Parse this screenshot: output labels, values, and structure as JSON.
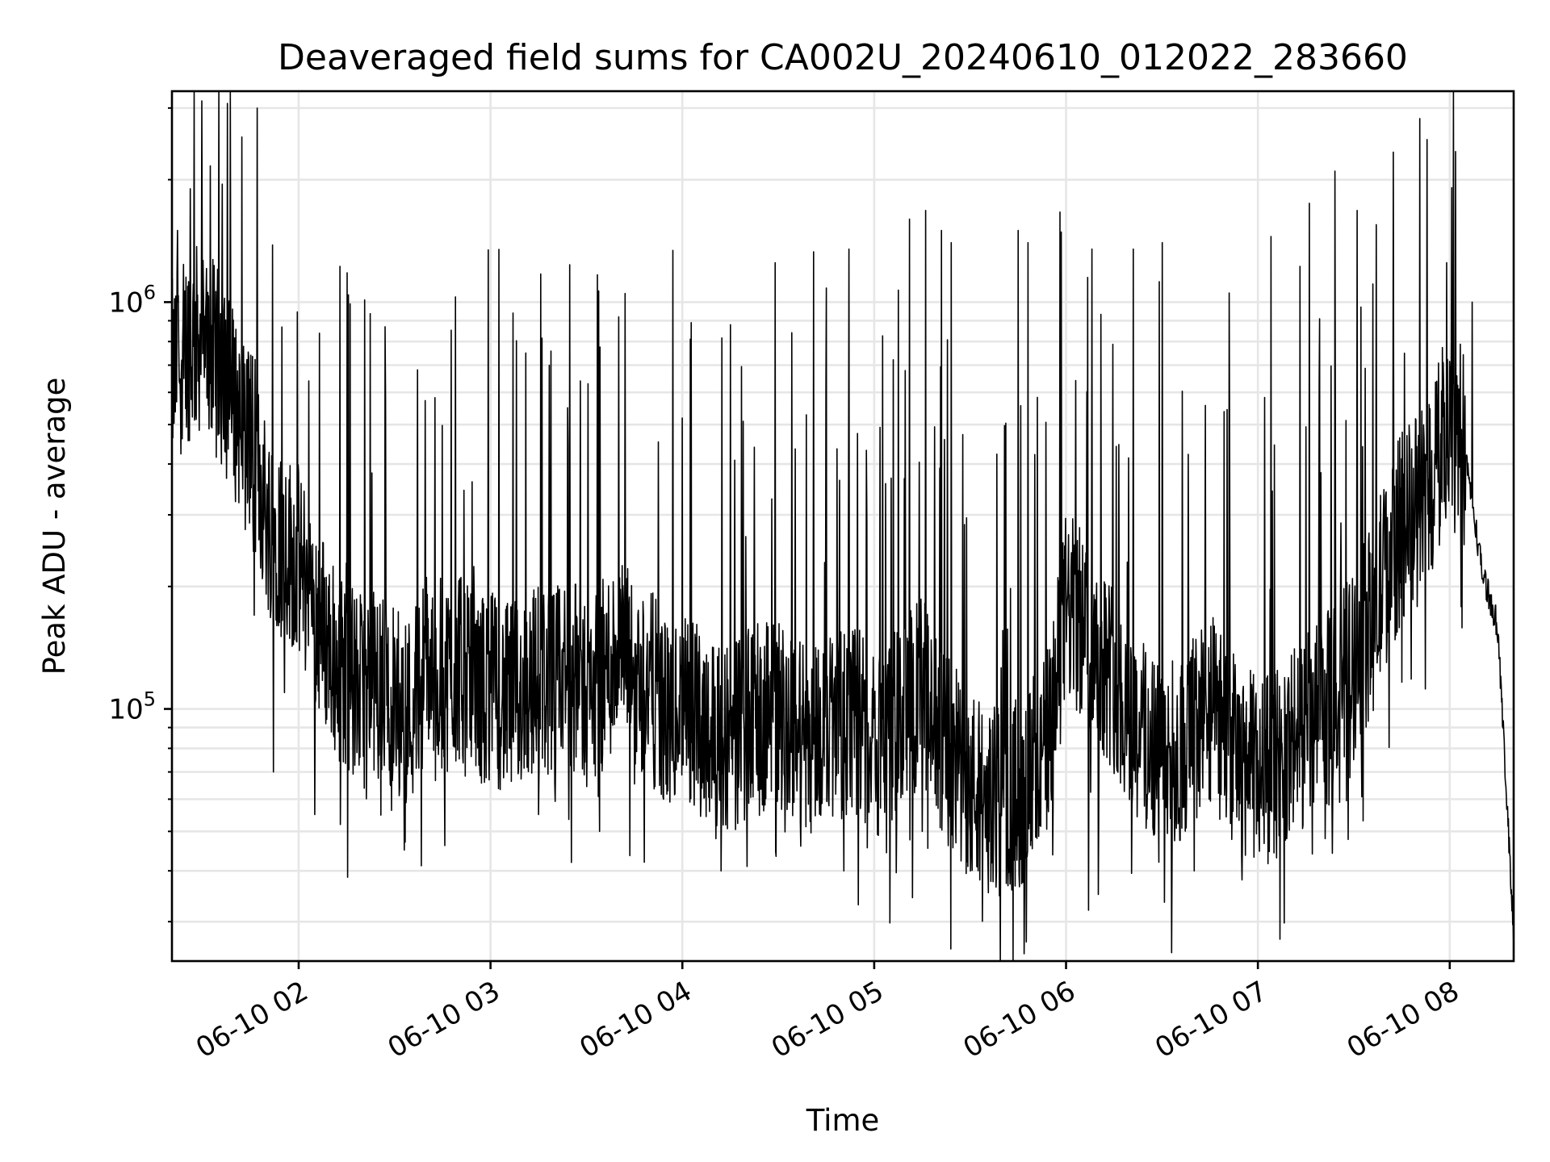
{
  "chart_data": {
    "type": "line",
    "title": "Deaveraged field sums for CA002U_20240610_012022_283660",
    "xlabel": "Time",
    "ylabel": "Peak ADU - average",
    "yscale": "log",
    "grid": true,
    "line_color": "#000000",
    "x_range": [
      "2024-06-10 01:20:22",
      "2024-06-10 08:20:00"
    ],
    "ylim": [
      24000,
      3300000
    ],
    "x_ticks": [
      {
        "value": "2024-06-10 02:00",
        "label": "06-10 02"
      },
      {
        "value": "2024-06-10 03:00",
        "label": "06-10 03"
      },
      {
        "value": "2024-06-10 04:00",
        "label": "06-10 04"
      },
      {
        "value": "2024-06-10 05:00",
        "label": "06-10 05"
      },
      {
        "value": "2024-06-10 06:00",
        "label": "06-10 06"
      },
      {
        "value": "2024-06-10 07:00",
        "label": "06-10 07"
      },
      {
        "value": "2024-06-10 08:00",
        "label": "06-10 08"
      }
    ],
    "y_ticks": [
      {
        "value": 100000,
        "base": "10",
        "exp": "5"
      },
      {
        "value": 1000000,
        "base": "10",
        "exp": "6"
      }
    ],
    "series": [
      {
        "x": [
          "2024-06-10 01:20",
          "2024-06-10 01:25",
          "2024-06-10 01:30",
          "2024-06-10 01:35",
          "2024-06-10 01:40",
          "2024-06-10 01:45",
          "2024-06-10 01:50",
          "2024-06-10 01:55",
          "2024-06-10 02:00",
          "2024-06-10 02:05",
          "2024-06-10 02:10",
          "2024-06-10 02:15",
          "2024-06-10 02:20",
          "2024-06-10 02:25",
          "2024-06-10 02:30",
          "2024-06-10 02:35",
          "2024-06-10 02:40",
          "2024-06-10 02:45",
          "2024-06-10 02:50",
          "2024-06-10 02:55",
          "2024-06-10 03:00",
          "2024-06-10 03:05",
          "2024-06-10 03:10",
          "2024-06-10 03:15",
          "2024-06-10 03:20",
          "2024-06-10 03:25",
          "2024-06-10 03:30",
          "2024-06-10 03:35",
          "2024-06-10 03:40",
          "2024-06-10 03:45",
          "2024-06-10 03:50",
          "2024-06-10 03:55",
          "2024-06-10 04:00",
          "2024-06-10 04:05",
          "2024-06-10 04:10",
          "2024-06-10 04:15",
          "2024-06-10 04:20",
          "2024-06-10 04:25",
          "2024-06-10 04:30",
          "2024-06-10 04:35",
          "2024-06-10 04:40",
          "2024-06-10 04:45",
          "2024-06-10 04:50",
          "2024-06-10 04:55",
          "2024-06-10 05:00",
          "2024-06-10 05:05",
          "2024-06-10 05:10",
          "2024-06-10 05:15",
          "2024-06-10 05:20",
          "2024-06-10 05:25",
          "2024-06-10 05:30",
          "2024-06-10 05:35",
          "2024-06-10 05:40",
          "2024-06-10 05:45",
          "2024-06-10 05:50",
          "2024-06-10 05:55",
          "2024-06-10 06:00",
          "2024-06-10 06:05",
          "2024-06-10 06:10",
          "2024-06-10 06:15",
          "2024-06-10 06:20",
          "2024-06-10 06:25",
          "2024-06-10 06:30",
          "2024-06-10 06:35",
          "2024-06-10 06:40",
          "2024-06-10 06:45",
          "2024-06-10 06:50",
          "2024-06-10 06:55",
          "2024-06-10 07:00",
          "2024-06-10 07:05",
          "2024-06-10 07:10",
          "2024-06-10 07:15",
          "2024-06-10 07:20",
          "2024-06-10 07:25",
          "2024-06-10 07:30",
          "2024-06-10 07:35",
          "2024-06-10 07:40",
          "2024-06-10 07:45",
          "2024-06-10 07:50",
          "2024-06-10 07:55",
          "2024-06-10 08:00",
          "2024-06-10 08:05",
          "2024-06-10 08:10",
          "2024-06-10 08:15",
          "2024-06-10 08:20"
        ],
        "y": [
          650000,
          780000,
          820000,
          700000,
          560000,
          480000,
          300000,
          260000,
          230000,
          180000,
          140000,
          120000,
          110000,
          115000,
          105000,
          100000,
          130000,
          120000,
          125000,
          110000,
          115000,
          105000,
          110000,
          120000,
          115000,
          125000,
          110000,
          120000,
          140000,
          120000,
          115000,
          95000,
          100000,
          95000,
          90000,
          85000,
          90000,
          95000,
          100000,
          90000,
          85000,
          95000,
          90000,
          95000,
          80000,
          90000,
          100000,
          110000,
          85000,
          75000,
          65000,
          60000,
          58000,
          62000,
          70000,
          85000,
          180000,
          160000,
          140000,
          120000,
          95000,
          85000,
          80000,
          75000,
          90000,
          100000,
          85000,
          75000,
          70000,
          72000,
          80000,
          90000,
          95000,
          110000,
          130000,
          160000,
          220000,
          280000,
          320000,
          370000,
          560000,
          420000,
          220000,
          160000,
          28000
        ],
        "spike_peaks": [
          [
            "2024-06-10 01:22",
            1500000
          ],
          [
            "2024-06-10 01:26",
            1900000
          ],
          [
            "2024-06-10 01:36",
            1950000
          ],
          [
            "2024-06-10 01:47",
            3000000
          ],
          [
            "2024-06-10 02:16",
            990000
          ],
          [
            "2024-06-10 02:27",
            870000
          ],
          [
            "2024-06-10 02:49",
            1030000
          ],
          [
            "2024-06-10 03:11",
            750000
          ],
          [
            "2024-06-10 03:24",
            550000
          ],
          [
            "2024-06-10 03:28",
            640000
          ],
          [
            "2024-06-10 03:40",
            920000
          ],
          [
            "2024-06-10 03:42",
            1050000
          ],
          [
            "2024-06-10 03:57",
            1340000
          ],
          [
            "2024-06-10 04:15",
            880000
          ],
          [
            "2024-06-10 04:29",
            1250000
          ],
          [
            "2024-06-10 04:41",
            1330000
          ],
          [
            "2024-06-10 04:52",
            1350000
          ],
          [
            "2024-06-10 05:11",
            1600000
          ],
          [
            "2024-06-10 05:16",
            1680000
          ],
          [
            "2024-06-10 05:21",
            1500000
          ],
          [
            "2024-06-10 05:24",
            1400000
          ],
          [
            "2024-06-10 05:45",
            1500000
          ],
          [
            "2024-06-10 05:48",
            1400000
          ],
          [
            "2024-06-10 06:08",
            1350000
          ],
          [
            "2024-06-10 06:21",
            1350000
          ],
          [
            "2024-06-10 06:30",
            1400000
          ],
          [
            "2024-06-10 06:40",
            1520000
          ],
          [
            "2024-06-10 06:55",
            1600000
          ],
          [
            "2024-06-10 07:04",
            1450000
          ],
          [
            "2024-06-10 07:16",
            1750000
          ],
          [
            "2024-06-10 07:24",
            2100000
          ],
          [
            "2024-06-10 07:31",
            1680000
          ],
          [
            "2024-06-10 07:37",
            1550000
          ],
          [
            "2024-06-10 07:59",
            1250000
          ],
          [
            "2024-06-10 08:07",
            1000000
          ]
        ],
        "dip_lows": [
          [
            "2024-06-10 01:46",
            170000
          ],
          [
            "2024-06-10 01:52",
            70000
          ],
          [
            "2024-06-10 02:05",
            55000
          ],
          [
            "2024-06-10 02:13",
            52000
          ],
          [
            "2024-06-10 02:33",
            45000
          ],
          [
            "2024-06-10 02:58",
            66000
          ],
          [
            "2024-06-10 03:15",
            55000
          ],
          [
            "2024-06-10 03:34",
            50000
          ],
          [
            "2024-06-10 03:48",
            42000
          ],
          [
            "2024-06-10 04:12",
            40000
          ],
          [
            "2024-06-10 04:37",
            46000
          ],
          [
            "2024-06-10 04:55",
            33000
          ],
          [
            "2024-06-10 05:15",
            50000
          ],
          [
            "2024-06-10 05:30",
            40000
          ],
          [
            "2024-06-10 05:33",
            38000
          ],
          [
            "2024-06-10 05:47",
            37000
          ],
          [
            "2024-06-10 06:07",
            32000
          ],
          [
            "2024-06-10 06:10",
            35000
          ],
          [
            "2024-06-10 06:29",
            42000
          ],
          [
            "2024-06-10 06:40",
            40000
          ],
          [
            "2024-06-10 06:55",
            38000
          ],
          [
            "2024-06-10 07:09",
            48000
          ],
          [
            "2024-06-10 07:17",
            44000
          ],
          [
            "2024-06-10 07:21",
            48000
          ]
        ]
      }
    ]
  }
}
